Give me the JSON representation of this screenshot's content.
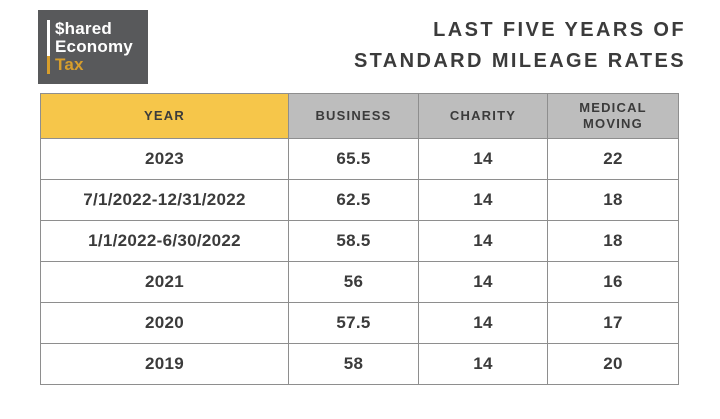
{
  "logo": {
    "line1": "$hared",
    "line2": "Economy",
    "line3": "Tax"
  },
  "title": {
    "line1": "LAST FIVE YEARS OF",
    "line2": "STANDARD MILEAGE RATES"
  },
  "table": {
    "headers": [
      "YEAR",
      "BUSINESS",
      "CHARITY",
      "MEDICAL MOVING"
    ],
    "rows": [
      [
        "2023",
        "65.5",
        "14",
        "22"
      ],
      [
        "7/1/2022-12/31/2022",
        "62.5",
        "14",
        "18"
      ],
      [
        "1/1/2022-6/30/2022",
        "58.5",
        "14",
        "18"
      ],
      [
        "2021",
        "56",
        "14",
        "16"
      ],
      [
        "2020",
        "57.5",
        "14",
        "17"
      ],
      [
        "2019",
        "58",
        "14",
        "20"
      ]
    ]
  },
  "colors": {
    "header_yellow": "#F6C64A",
    "header_gray": "#BDBDBD",
    "logo_background": "#58595B",
    "logo_gold": "#D79E2C",
    "text_dark": "#3B3B3B",
    "table_border": "#8E8E8E"
  },
  "chart_data": {
    "type": "table",
    "title": "LAST FIVE YEARS OF STANDARD MILEAGE RATES",
    "columns": [
      "YEAR",
      "BUSINESS",
      "CHARITY",
      "MEDICAL MOVING"
    ],
    "rows": [
      [
        "2023",
        65.5,
        14,
        22
      ],
      [
        "7/1/2022-12/31/2022",
        62.5,
        14,
        18
      ],
      [
        "1/1/2022-6/30/2022",
        58.5,
        14,
        18
      ],
      [
        "2021",
        56,
        14,
        16
      ],
      [
        "2020",
        57.5,
        14,
        17
      ],
      [
        "2019",
        58,
        14,
        20
      ]
    ]
  }
}
